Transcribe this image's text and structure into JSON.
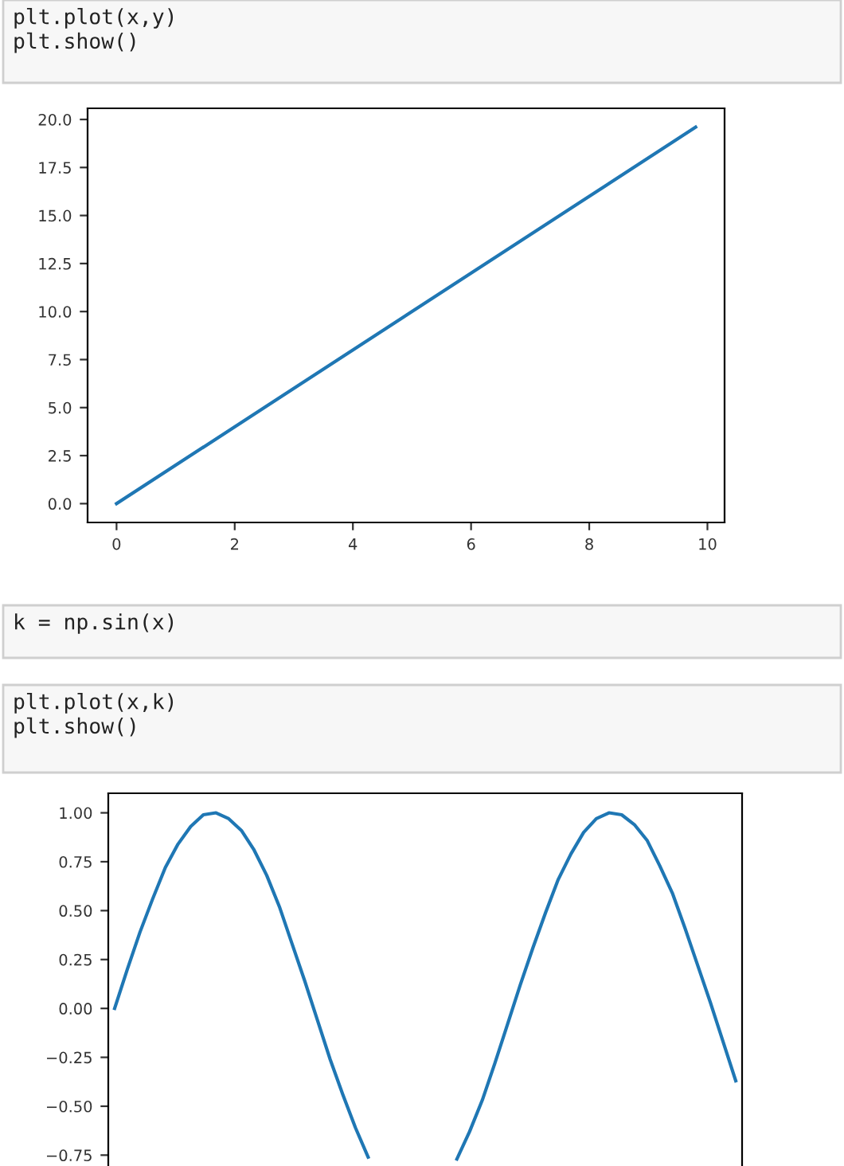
{
  "chart_data": [
    {
      "type": "line",
      "annotations": [
        "plt.plot(x,y)\nplt.show()"
      ],
      "x": [
        0,
        9.8
      ],
      "series": [
        {
          "color": "#1f77b4",
          "values": [
            0,
            19.6
          ]
        }
      ],
      "xlim": [
        -0.49,
        10.29
      ],
      "ylim": [
        -0.98,
        20.58
      ],
      "xticks": [
        0,
        2,
        4,
        6,
        8,
        10
      ],
      "yticks": [
        {
          "value": 0,
          "label": "0.0"
        },
        {
          "value": 2.5,
          "label": "2.5"
        },
        {
          "value": 5,
          "label": "5.0"
        },
        {
          "value": 7.5,
          "label": "7.5"
        },
        {
          "value": 10,
          "label": "10.0"
        },
        {
          "value": 12.5,
          "label": "12.5"
        },
        {
          "value": 15,
          "label": "15.0"
        },
        {
          "value": 17.5,
          "label": "17.5"
        },
        {
          "value": 20,
          "label": "20.0"
        }
      ],
      "grid": false,
      "legend": false
    },
    {
      "type": "line",
      "annotations": [
        "k = np.sin(x)",
        "plt.plot(x,k)\nplt.show()"
      ],
      "categories": [
        null,
        null,
        null,
        null,
        null,
        null,
        null,
        null,
        null,
        null,
        null,
        null,
        null,
        null,
        null,
        null,
        null,
        null,
        null,
        null,
        null,
        null,
        null,
        null,
        null,
        null,
        null,
        null,
        null,
        null,
        null,
        null,
        null,
        null,
        null,
        null,
        null,
        null,
        null,
        null,
        null,
        null,
        null,
        null,
        null,
        null,
        null,
        null,
        null,
        null
      ],
      "series": [
        {
          "color": "#1f77b4",
          "values": [
            0,
            0.2,
            0.39,
            0.56,
            0.72,
            0.84,
            0.93,
            0.99,
            1.0,
            0.97,
            0.91,
            0.81,
            0.68,
            0.52,
            0.33,
            0.14,
            -0.06,
            -0.26,
            -0.44,
            -0.61,
            -0.76,
            null,
            null,
            null,
            null,
            null,
            null,
            -0.77,
            -0.63,
            -0.47,
            -0.28,
            -0.08,
            0.12,
            0.31,
            0.49,
            0.66,
            0.79,
            0.9,
            0.97,
            1.0,
            0.99,
            0.94,
            0.86,
            0.73,
            0.59,
            0.41,
            0.22,
            0.03,
            -0.17,
            -0.37
          ]
        }
      ],
      "ylim": [
        -0.83,
        1.1
      ],
      "yticks": [
        {
          "value": 1,
          "label": "1.00"
        },
        {
          "value": 0.75,
          "label": "0.75"
        },
        {
          "value": 0.5,
          "label": "0.50"
        },
        {
          "value": 0.25,
          "label": "0.25"
        },
        {
          "value": 0,
          "label": "0.00"
        },
        {
          "value": -0.25,
          "label": "−0.25"
        },
        {
          "value": -0.5,
          "label": "−0.50"
        },
        {
          "value": -0.75,
          "label": "−0.75"
        }
      ],
      "grid": false,
      "legend": false
    }
  ]
}
